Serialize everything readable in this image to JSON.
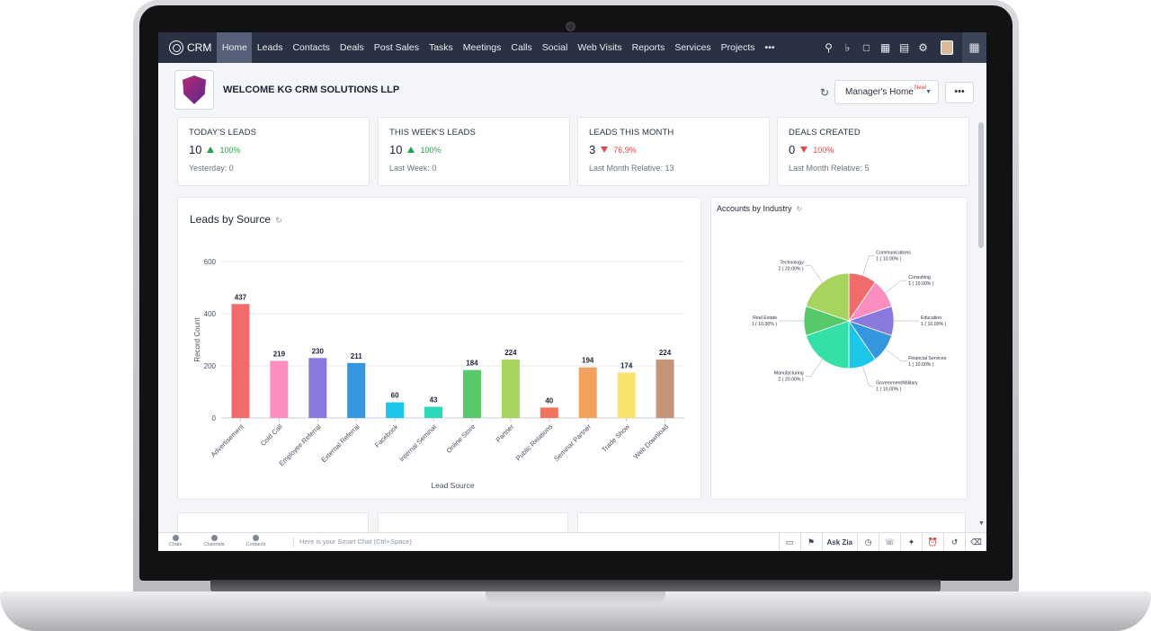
{
  "nav": {
    "brand": "CRM",
    "items": [
      "Home",
      "Leads",
      "Contacts",
      "Deals",
      "Post Sales",
      "Tasks",
      "Meetings",
      "Calls",
      "Social",
      "Web Visits",
      "Reports",
      "Services",
      "Projects",
      "•••"
    ],
    "active_index": 0,
    "icons": [
      "search-icon",
      "bell-icon",
      "new-record-icon",
      "calendar-icon",
      "marketplace-icon",
      "settings-icon"
    ]
  },
  "header": {
    "welcome": "WELCOME KG CRM SOLUTIONS LLP",
    "home_view": "Manager's Home",
    "home_view_badge": "New!",
    "more_label": "•••"
  },
  "kpis": [
    {
      "title": "TODAY'S LEADS",
      "value": "10",
      "trend": "up",
      "pct": "100%",
      "sub": "Yesterday: 0"
    },
    {
      "title": "THIS WEEK'S LEADS",
      "value": "10",
      "trend": "up",
      "pct": "100%",
      "sub": "Last Week: 0"
    },
    {
      "title": "LEADS THIS MONTH",
      "value": "3",
      "trend": "down",
      "pct": "76.9%",
      "sub": "Last Month Relative: 13"
    },
    {
      "title": "DEALS CREATED",
      "value": "0",
      "trend": "down",
      "pct": "100%",
      "sub": "Last Month Relative: 5"
    }
  ],
  "colors": {
    "nav_bg": "#2a3142",
    "nav_active": "#566078",
    "up": "#22a34a",
    "down": "#e4484a"
  },
  "chart_data": [
    {
      "type": "bar",
      "title": "Leads by Source",
      "xlabel": "Lead Source",
      "ylabel": "Record Count",
      "ylim": [
        0,
        600
      ],
      "yticks": [
        0,
        200,
        400,
        600
      ],
      "grid": true,
      "categories": [
        "Advertisement",
        "Cold Call",
        "Employee Referral",
        "External Referral",
        "Facebook",
        "Internal Seminar",
        "Online Store",
        "Partner",
        "Public Relations",
        "Seminar Partner",
        "Trade Show",
        "Web Download"
      ],
      "values": [
        437,
        219,
        230,
        211,
        60,
        43,
        184,
        224,
        40,
        194,
        174,
        224
      ],
      "colors": [
        "#f26b6b",
        "#fb8dc1",
        "#8a79dd",
        "#3596e0",
        "#1cc6e8",
        "#2dd9ba",
        "#57c96b",
        "#a7d45e",
        "#f2725c",
        "#f2a25c",
        "#fbe36b",
        "#c49477"
      ]
    },
    {
      "type": "pie",
      "title": "Accounts by Industry",
      "legend": "labels",
      "labels": [
        "Communications",
        "Consulting",
        "Education",
        "Financial Services",
        "Government/Military",
        "Manufacturing",
        "Real Estate",
        "Technology"
      ],
      "values": [
        1,
        1,
        1,
        1,
        1,
        2,
        1,
        2
      ],
      "value_labels": [
        "1 ( 10.00% )",
        "1 ( 10.00% )",
        "1 ( 10.00% )",
        "1 ( 10.00% )",
        "1 ( 10.00% )",
        "2 ( 20.00% )",
        "1 ( 10.00% )",
        "2 ( 20.00% )"
      ],
      "colors": [
        "#f26b6b",
        "#fb8dc1",
        "#8a79dd",
        "#3596e0",
        "#1cc6e8",
        "#35dfa8",
        "#57c96b",
        "#a7d45e"
      ]
    }
  ],
  "statusbar": {
    "left": [
      "Chats",
      "Channels",
      "Contacts"
    ],
    "smart_chat": "Here is your Smart Chat (Ctrl+Space)",
    "ask_zia": "Ask Zia"
  }
}
